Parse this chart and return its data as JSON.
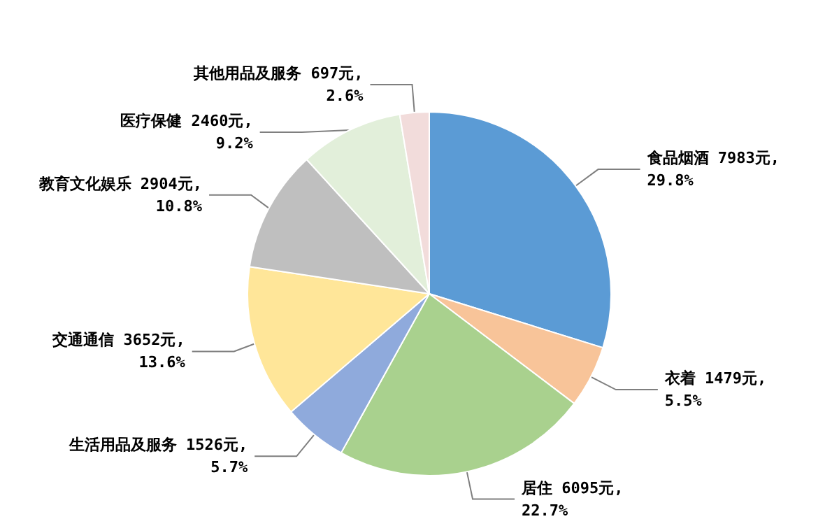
{
  "chart_data": {
    "type": "pie",
    "categories": [
      "食品烟酒",
      "衣着",
      "居住",
      "生活用品及服务",
      "交通通信",
      "教育文化娱乐",
      "医疗保健",
      "其他用品及服务"
    ],
    "values": [
      7983,
      1479,
      6095,
      1526,
      3652,
      2904,
      2460,
      697
    ],
    "value_labels": [
      "7983元, 29.8%",
      "1479元, 5.5%",
      "6095元, 22.7%",
      "1526元, 5.7%",
      "3652元, 13.6%",
      "2904元, 10.8%",
      "2460元, 9.2%",
      "697元, 2.6%"
    ],
    "colors": [
      "#5b9bd5",
      "#f8c499",
      "#a9d18e",
      "#8faadc",
      "#ffe699",
      "#bfbfbf",
      "#e2efda",
      "#f2dcdb"
    ],
    "legend": false
  }
}
